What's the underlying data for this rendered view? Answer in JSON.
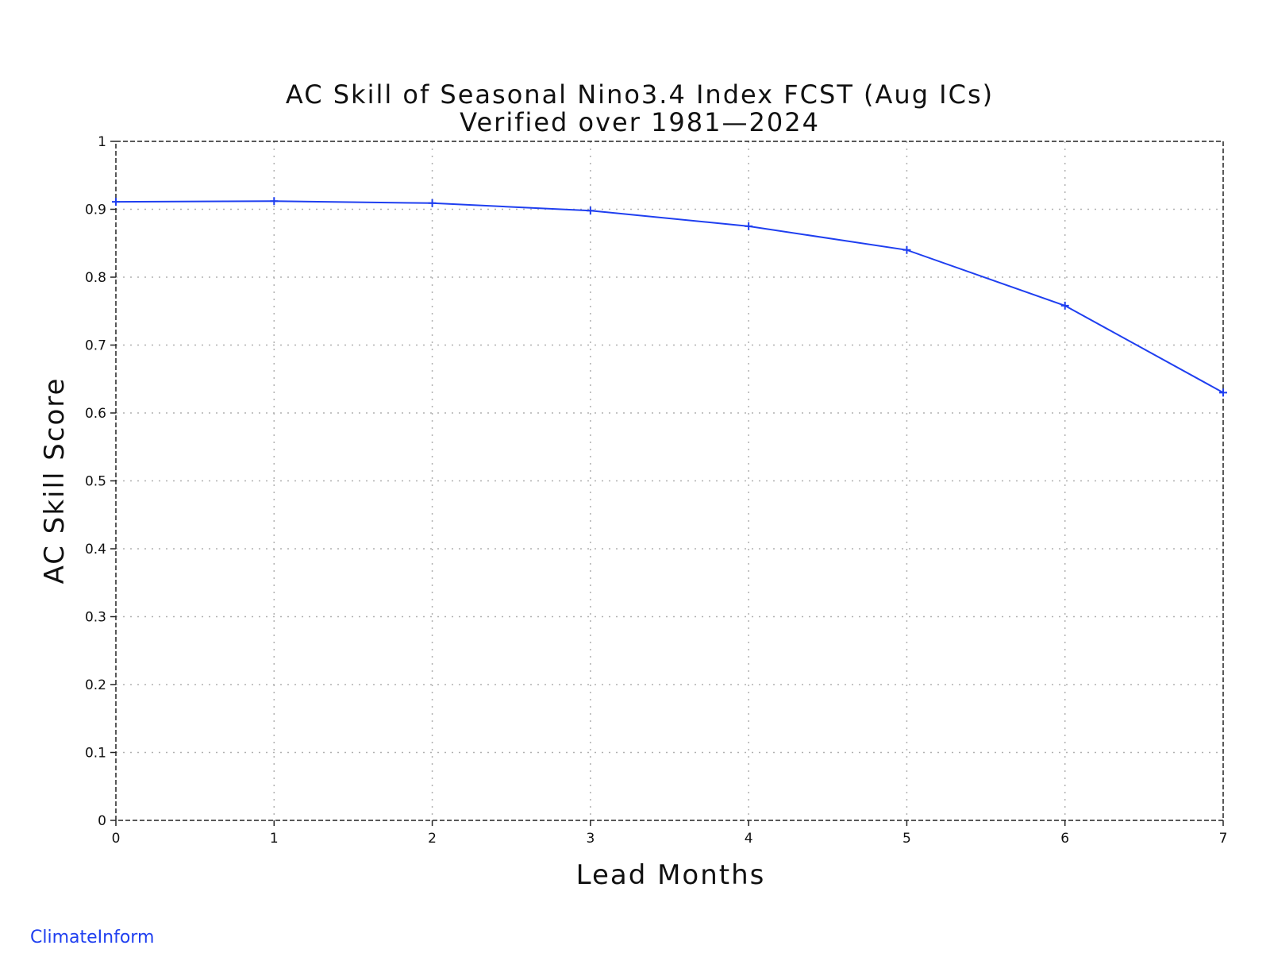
{
  "chart_data": {
    "type": "line",
    "title": "AC Skill of Seasonal Nino3.4 Index FCST (Aug ICs)",
    "subtitle": "Verified over 1981—2024",
    "xlabel": "Lead Months",
    "ylabel": "AC Skill Score",
    "xlim": [
      0,
      7
    ],
    "ylim": [
      0,
      1
    ],
    "xticks": [
      "0",
      "1",
      "2",
      "3",
      "4",
      "5",
      "6",
      "7"
    ],
    "yticks": [
      "0",
      "0.1",
      "0.2",
      "0.3",
      "0.4",
      "0.5",
      "0.6",
      "0.7",
      "0.8",
      "0.9",
      "1"
    ],
    "grid": true,
    "series": [
      {
        "x": [
          0,
          1,
          2,
          3,
          4,
          5,
          6,
          7
        ],
        "values": [
          0.911,
          0.912,
          0.909,
          0.898,
          0.875,
          0.84,
          0.758,
          0.63
        ],
        "color": "#1f3ff0"
      }
    ]
  },
  "footer": {
    "credit": "ClimateInform"
  }
}
